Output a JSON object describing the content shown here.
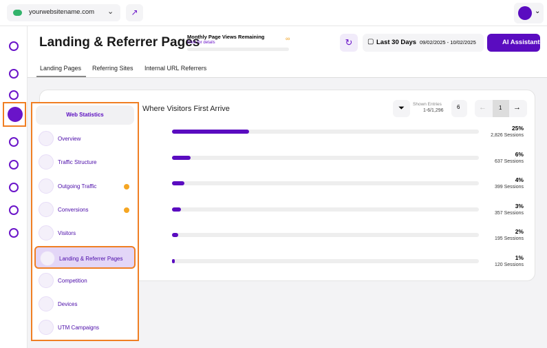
{
  "topbar": {
    "site": "yourwebsitename.com"
  },
  "header": {
    "title": "Landing & Referrer Pages",
    "quota_title": "Monthly Page Views Remaining",
    "quota_link": "Click for details",
    "quota_symbol": "∞",
    "range_label": "Last 30 Days",
    "range_dates": "09/02/2025 - 10/02/2025",
    "ai_button": "AI Assistant"
  },
  "tabs": [
    "Landing Pages",
    "Referring Sites",
    "Internal URL Referrers"
  ],
  "card": {
    "title": "Where Visitors First Arrive",
    "entries_label": "Shown Entries",
    "entries_range": "1-6/1,296",
    "page_size": "6",
    "page": "1",
    "rows": [
      {
        "value": 25,
        "value_label": "25%",
        "sessions": "2,826 Sessions"
      },
      {
        "value": 6,
        "value_label": "6%",
        "sessions": "637 Sessions"
      },
      {
        "value": 4,
        "value_label": "4%",
        "sessions": "399 Sessions"
      },
      {
        "value": 3,
        "value_label": "3%",
        "sessions": "357 Sessions"
      },
      {
        "value": 2,
        "value_label": "2%",
        "sessions": "195 Sessions"
      },
      {
        "value": 1,
        "value_label": "1%",
        "sessions": "120 Sessions"
      }
    ]
  },
  "menu": {
    "title": "Web Statistics",
    "items": [
      {
        "label": "Overview"
      },
      {
        "label": "Traffic Structure"
      },
      {
        "label": "Outgoing Traffic",
        "badge": true
      },
      {
        "label": "Conversions",
        "badge": true
      },
      {
        "label": "Visitors"
      },
      {
        "label": "Landing & Referrer Pages",
        "active": true
      },
      {
        "label": "Competition"
      },
      {
        "label": "Devices"
      },
      {
        "label": "UTM Campaigns"
      }
    ]
  }
}
